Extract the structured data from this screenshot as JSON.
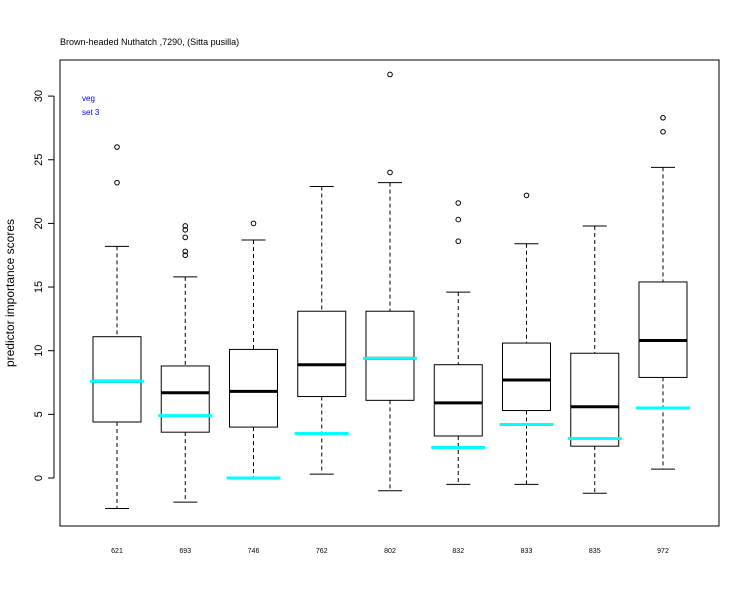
{
  "chart_data": {
    "type": "box",
    "title": "Brown-headed Nuthatch ,7290, (Sitta pusilla)",
    "xlabel": "",
    "ylabel": "predictor importance scores",
    "ylim": [
      -3.6,
      33.1
    ],
    "yticks": [
      0,
      5,
      10,
      15,
      20,
      25,
      30
    ],
    "annotations": [
      "veg",
      "set 3"
    ],
    "colors": {
      "box": "#000000",
      "median": "#000000",
      "reference": "#00ffff",
      "annotation": "#0000ff"
    },
    "categories": [
      "621",
      "693",
      "746",
      "762",
      "802",
      "832",
      "833",
      "835",
      "972"
    ],
    "boxes": [
      {
        "label": "621",
        "whisker_low": -2.4,
        "q1": 4.4,
        "median": 7.6,
        "q3": 11.1,
        "whisker_high": 18.2,
        "outliers": [
          23.2,
          26.0
        ],
        "reference": 7.6
      },
      {
        "label": "693",
        "whisker_low": -1.9,
        "q1": 3.6,
        "median": 6.7,
        "q3": 8.8,
        "whisker_high": 15.8,
        "outliers": [
          17.5,
          17.8,
          18.9,
          19.5,
          19.8
        ],
        "reference": 4.9
      },
      {
        "label": "746",
        "whisker_low": 0.0,
        "q1": 4.0,
        "median": 6.8,
        "q3": 10.1,
        "whisker_high": 18.7,
        "outliers": [
          20.0
        ],
        "reference": 0.0
      },
      {
        "label": "762",
        "whisker_low": 0.3,
        "q1": 6.4,
        "median": 8.9,
        "q3": 13.1,
        "whisker_high": 22.9,
        "outliers": [],
        "reference": 3.5
      },
      {
        "label": "802",
        "whisker_low": -1.0,
        "q1": 6.1,
        "median": 9.4,
        "q3": 13.1,
        "whisker_high": 23.2,
        "outliers": [
          24.0,
          31.7
        ],
        "reference": 9.4
      },
      {
        "label": "832",
        "whisker_low": -0.5,
        "q1": 3.3,
        "median": 5.9,
        "q3": 8.9,
        "whisker_high": 14.6,
        "outliers": [
          18.6,
          20.3,
          21.6
        ],
        "reference": 2.4
      },
      {
        "label": "833",
        "whisker_low": -0.5,
        "q1": 5.3,
        "median": 7.7,
        "q3": 10.6,
        "whisker_high": 18.4,
        "outliers": [
          22.2
        ],
        "reference": 4.2
      },
      {
        "label": "835",
        "whisker_low": -1.2,
        "q1": 2.5,
        "median": 5.6,
        "q3": 9.8,
        "whisker_high": 19.8,
        "outliers": [],
        "reference": 3.1
      },
      {
        "label": "972",
        "whisker_low": 0.7,
        "q1": 7.9,
        "median": 10.8,
        "q3": 15.4,
        "whisker_high": 24.4,
        "outliers": [
          27.2,
          28.3
        ],
        "reference": 5.5
      }
    ]
  }
}
